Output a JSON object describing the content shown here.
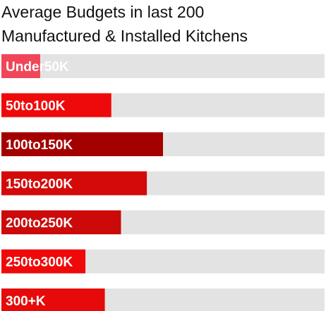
{
  "chart_data": {
    "type": "bar",
    "orientation": "horizontal",
    "title_lines": [
      "Average Budgets in last 200",
      "Manufactured & Installed Kitchens"
    ],
    "categories": [
      "Under50K",
      "50to100K",
      "100to150K",
      "150to200K",
      "200to250K",
      "250to300K",
      "300+K"
    ],
    "values": [
      12,
      34,
      50,
      45,
      37,
      26,
      32
    ],
    "xlim": [
      0,
      100
    ],
    "xlabel": "",
    "ylabel": "",
    "grid": false,
    "legend": "none",
    "track_color": "#e3e3e3",
    "bar_colors": [
      "#f0465a",
      "#ee0a0a",
      "#a50000",
      "#d40a0a",
      "#cc0a0a",
      "#ee0a0a",
      "#e60a0a"
    ]
  }
}
